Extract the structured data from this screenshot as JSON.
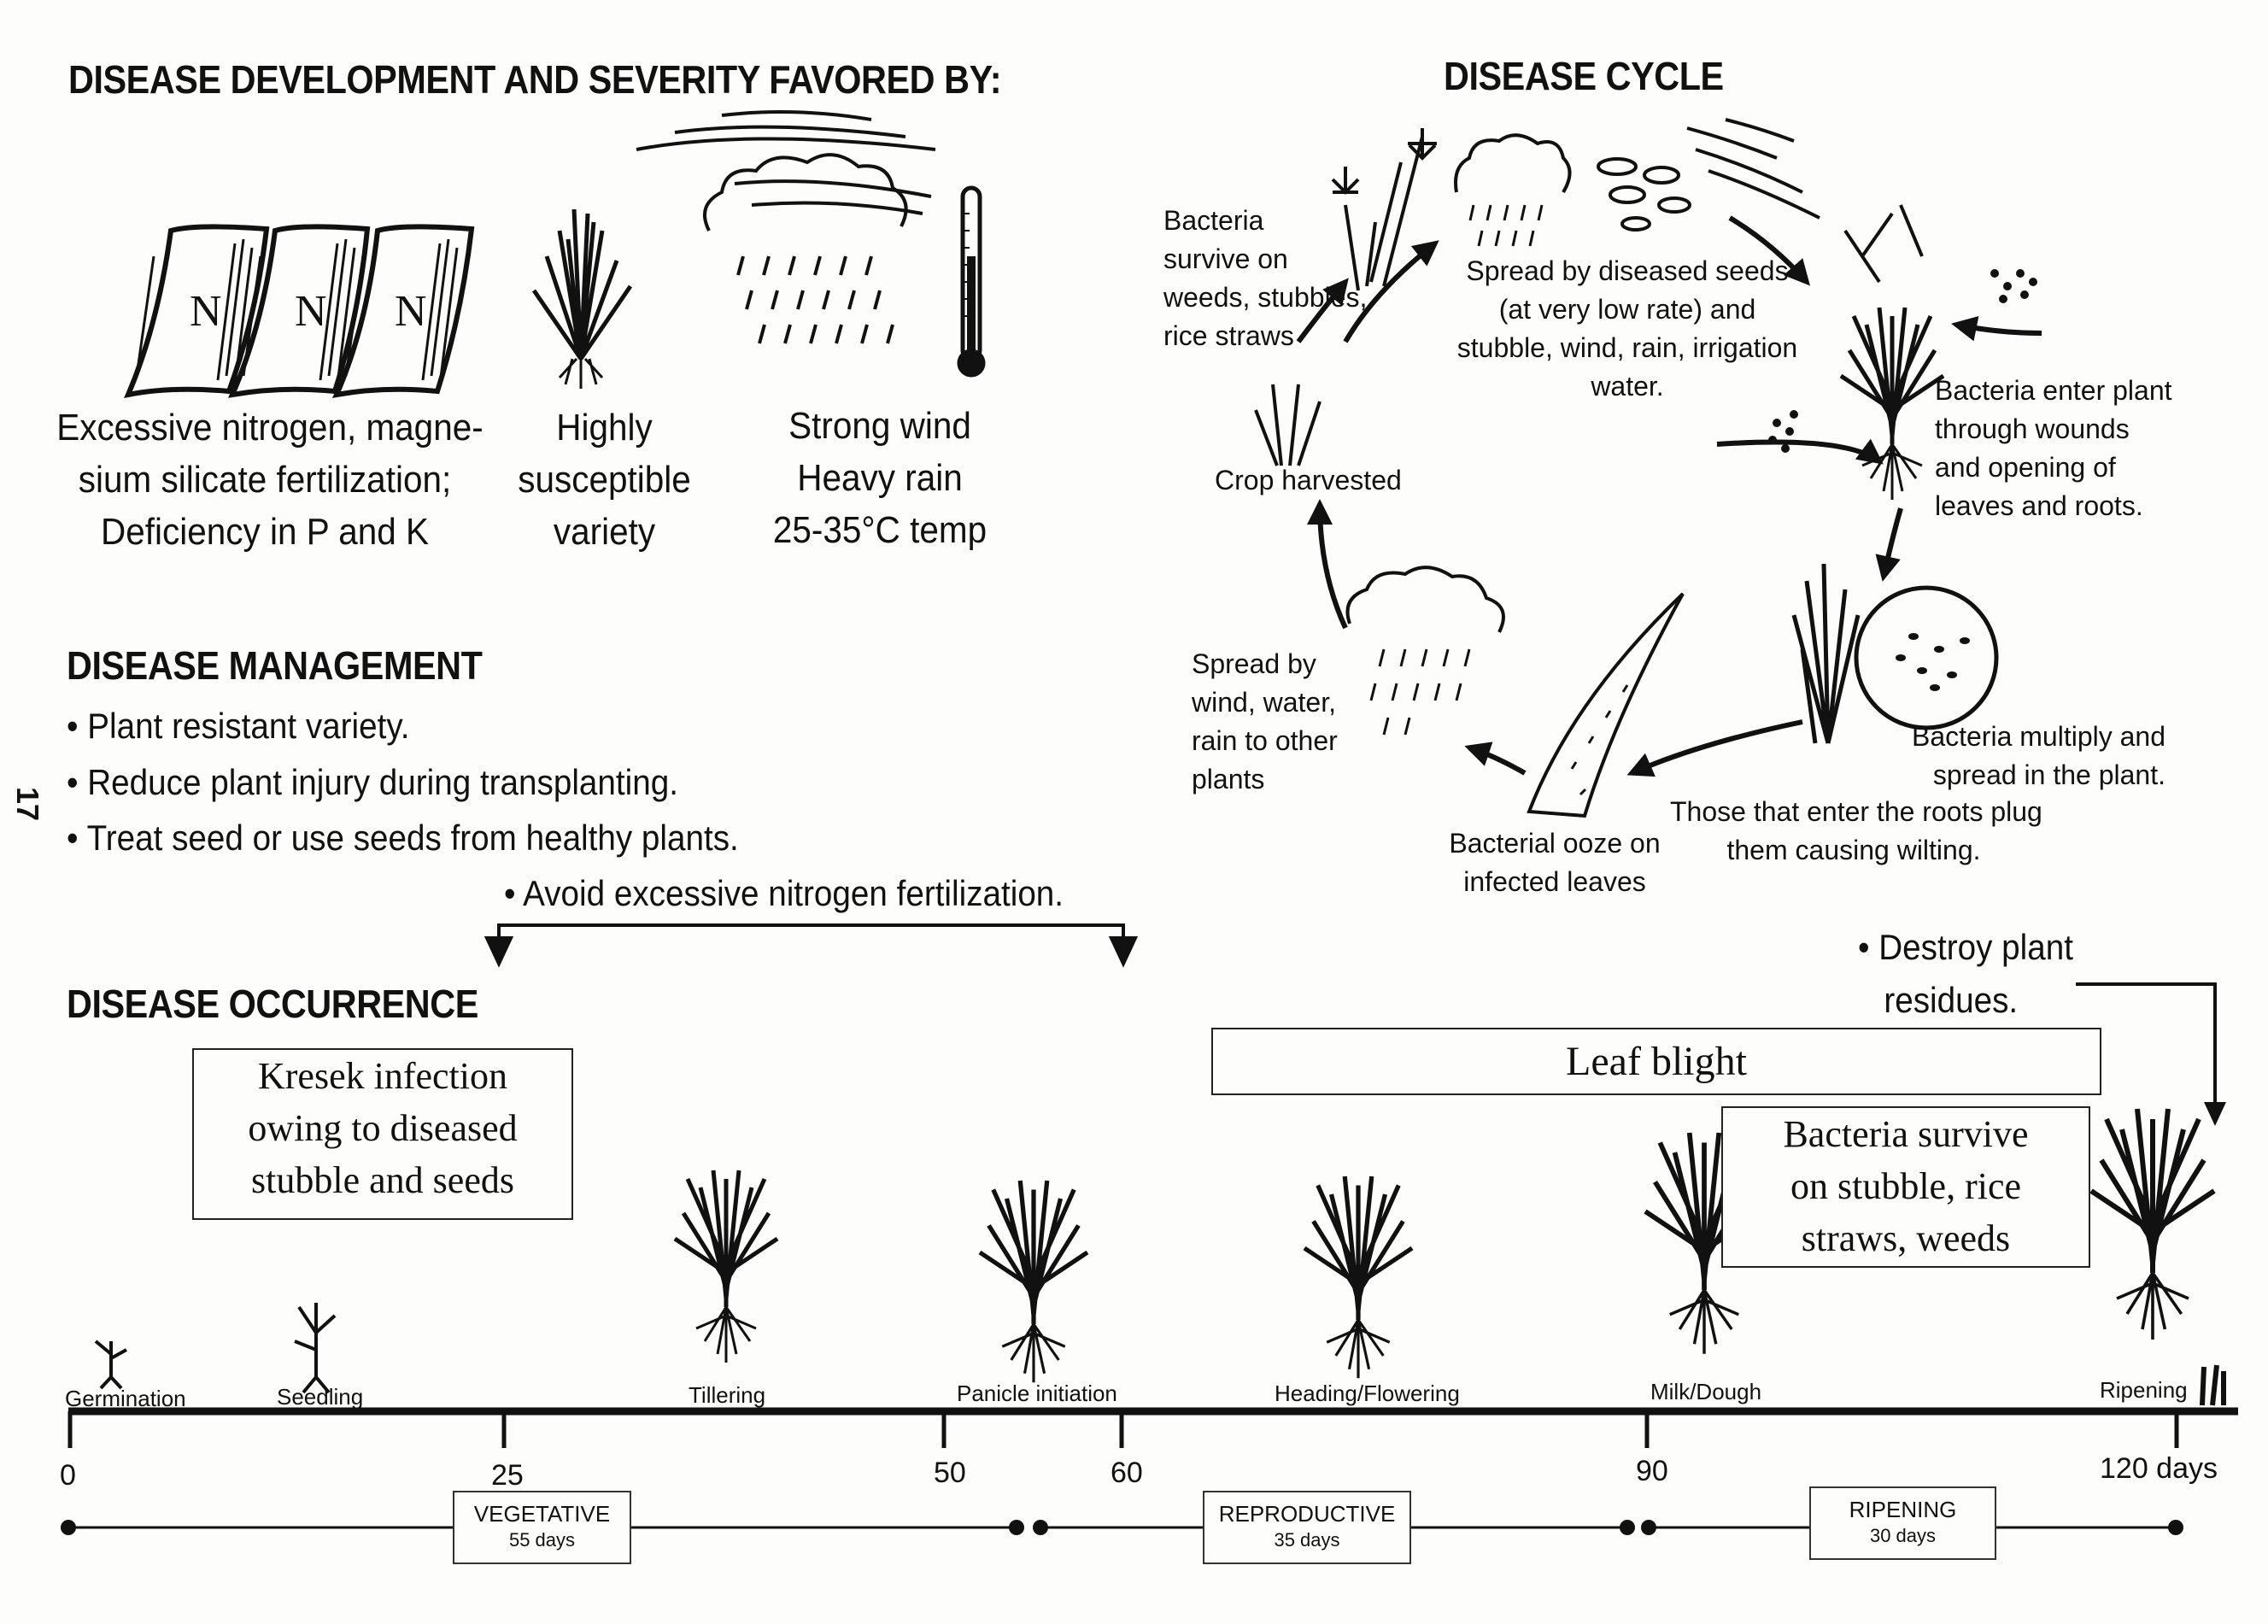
{
  "page_number": "17",
  "favored": {
    "heading": "DISEASE DEVELOPMENT AND SEVERITY FAVORED BY:",
    "bag_letter": "N",
    "fertilization": [
      "Excessive nitrogen, magne-",
      "sium silicate fertilization;",
      "Deficiency in P and K"
    ],
    "variety": [
      "Highly",
      "susceptible",
      "variety"
    ],
    "weather": [
      "Strong wind",
      "Heavy rain",
      "25-35°C temp"
    ]
  },
  "management": {
    "heading": "DISEASE MANAGEMENT",
    "items": [
      "Plant resistant variety.",
      "Reduce plant injury during transplanting.",
      "Treat seed or use seeds from healthy plants."
    ],
    "avoid_nitrogen": "Avoid excessive nitrogen fertilization.",
    "destroy_residues": [
      "Destroy plant",
      "residues."
    ],
    "bullet": "•"
  },
  "cycle": {
    "heading": "DISEASE CYCLE",
    "survive": [
      "Bacteria",
      "survive on",
      "weeds, stubbles,",
      "rice straws"
    ],
    "spread_seeds": [
      "Spread by diseased seeds",
      "(at very low rate) and",
      "stubble, wind, rain, irrigation",
      "water."
    ],
    "enter_plant": [
      "Bacteria enter plant",
      "through wounds",
      "and opening of",
      "leaves and roots."
    ],
    "multiply": [
      "Bacteria multiply and",
      "spread in the plant."
    ],
    "roots_plug": [
      "Those that enter the roots plug",
      "them causing wilting."
    ],
    "ooze": [
      "Bacterial ooze on",
      "infected leaves"
    ],
    "spread_wind": [
      "Spread by",
      "wind, water,",
      "rain to other",
      "plants"
    ],
    "harvested": "Crop harvested"
  },
  "occurrence": {
    "heading": "DISEASE OCCURRENCE",
    "kresek": [
      "Kresek infection",
      "owing to diseased",
      "stubble and seeds"
    ],
    "leaf_blight": "Leaf blight",
    "survive_box": [
      "Bacteria survive",
      "on stubble, rice",
      "straws, weeds"
    ],
    "stages": [
      "Germination",
      "Seedling",
      "Tillering",
      "Panicle initiation",
      "Heading/Flowering",
      "Milk/Dough",
      "Ripening"
    ],
    "ticks": [
      "0",
      "25",
      "50",
      "60",
      "90",
      "120 days"
    ],
    "phases": [
      {
        "name": "VEGETATIVE",
        "duration": "55 days"
      },
      {
        "name": "REPRODUCTIVE",
        "duration": "35 days"
      },
      {
        "name": "RIPENING",
        "duration": "30 days"
      }
    ]
  }
}
